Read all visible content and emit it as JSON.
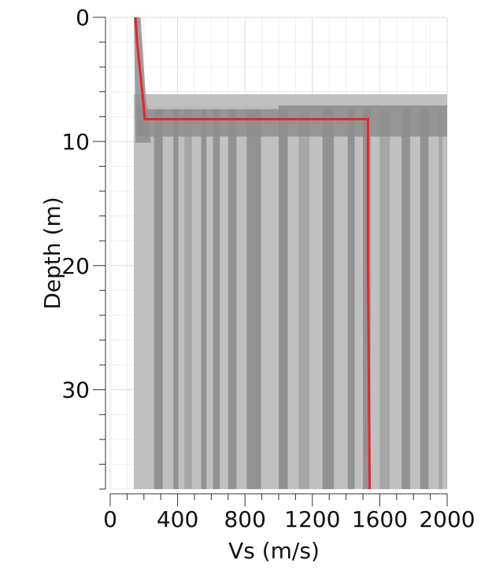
{
  "chart_data": {
    "type": "line",
    "xlabel": "Vs (m/s)",
    "ylabel": "Depth (m)",
    "xlim": [
      0,
      2000
    ],
    "ylim": [
      38,
      0
    ],
    "x_ticks": [
      0,
      400,
      800,
      1200,
      1600,
      2000
    ],
    "y_ticks": [
      0,
      10,
      20,
      30
    ],
    "x_minor_step": 100,
    "y_minor_step": 2,
    "grid": true,
    "colors": {
      "best_profile": "#e8262b",
      "ensemble_band": "#a3a3a3",
      "ensemble_dark": "#8d8d8d",
      "ensemble_light": "#c0c0c0"
    },
    "best_profile": {
      "vs": [
        150,
        160,
        175,
        190,
        205,
        205,
        1530,
        1530,
        1540
      ],
      "depth": [
        0,
        2,
        4,
        6,
        8.2,
        8.2,
        8.2,
        20,
        38
      ]
    },
    "ensemble": {
      "layer_interface_depth_range": [
        6.2,
        9.6
      ],
      "surface_vs_range": [
        140,
        210
      ],
      "halfspace_vs": [
        {
          "vs": 260,
          "shade": "dark"
        },
        {
          "vs": 375,
          "shade": "dark"
        },
        {
          "vs": 440,
          "shade": "light"
        },
        {
          "vs": 540,
          "shade": "dark"
        },
        {
          "vs": 610,
          "shade": "dark"
        },
        {
          "vs": 700,
          "shade": "dark"
        },
        {
          "vs": 810,
          "shade": "dark"
        },
        {
          "vs": 1000,
          "shade": "dark"
        },
        {
          "vs": 1120,
          "shade": "light"
        },
        {
          "vs": 1260,
          "shade": "dark"
        },
        {
          "vs": 1410,
          "shade": "dark"
        },
        {
          "vs": 1500,
          "shade": "dark"
        },
        {
          "vs": 1600,
          "shade": "light"
        },
        {
          "vs": 1730,
          "shade": "dark"
        },
        {
          "vs": 1840,
          "shade": "dark"
        },
        {
          "vs": 1950,
          "shade": "light"
        }
      ]
    }
  }
}
